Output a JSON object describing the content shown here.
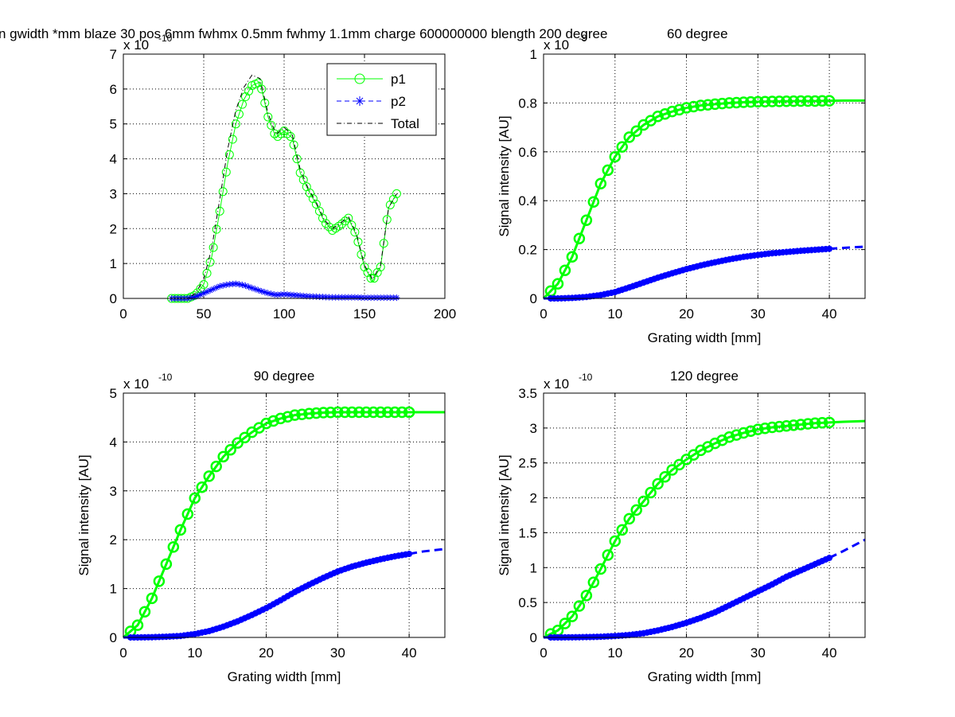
{
  "figure_title_main": "n gwidth *mm blaze 30 pos 6mm fwhmx 0.5mm fwhmy 1.1mm charge 600000000 blength 200 degree",
  "figure_title_overlay": "60 degree",
  "colors": {
    "p1": "#00ff00",
    "p2": "#0000ff",
    "total": "#000000",
    "grid": "#000000"
  },
  "chart_data": [
    {
      "type": "line",
      "title": "",
      "xlabel": "",
      "ylabel": "",
      "xlim": [
        0,
        200
      ],
      "ylim": [
        0,
        7
      ],
      "xticks": [
        0,
        50,
        100,
        150,
        200
      ],
      "yticks": [
        0,
        1,
        2,
        3,
        4,
        5,
        6,
        7
      ],
      "exponent": "x 10",
      "exponent_power": "-10",
      "grid": true,
      "legend": {
        "placement": "top-right",
        "entries": [
          "p1",
          "p2",
          "Total"
        ]
      },
      "series": [
        {
          "name": "p1",
          "marker": "o",
          "x": [
            30,
            40,
            45,
            50,
            55,
            60,
            65,
            70,
            75,
            80,
            85,
            90,
            95,
            100,
            105,
            110,
            115,
            120,
            125,
            130,
            135,
            140,
            145,
            150,
            155,
            160,
            165,
            170
          ],
          "values": [
            0,
            0,
            0.1,
            0.4,
            1.2,
            2.5,
            3.9,
            5.0,
            5.7,
            6.1,
            6.2,
            5.2,
            4.6,
            4.8,
            4.6,
            3.6,
            3.1,
            2.7,
            2.2,
            1.95,
            2.1,
            2.3,
            1.8,
            0.9,
            0.5,
            0.9,
            2.6,
            3.0
          ]
        },
        {
          "name": "p2",
          "marker": "*",
          "x": [
            30,
            40,
            45,
            50,
            55,
            60,
            65,
            70,
            75,
            80,
            85,
            90,
            95,
            100,
            105,
            110,
            115,
            120,
            125,
            130,
            135,
            140,
            145,
            150,
            155,
            160,
            165,
            170
          ],
          "values": [
            0,
            0,
            0.05,
            0.15,
            0.25,
            0.35,
            0.4,
            0.42,
            0.38,
            0.3,
            0.22,
            0.15,
            0.1,
            0.12,
            0.1,
            0.08,
            0.06,
            0.05,
            0.04,
            0.03,
            0.03,
            0.03,
            0.03,
            0.02,
            0.02,
            0.02,
            0.02,
            0.02
          ]
        },
        {
          "name": "Total",
          "marker": "none",
          "x": [
            30,
            40,
            45,
            50,
            55,
            60,
            65,
            70,
            75,
            80,
            85,
            90,
            95,
            100,
            105,
            110,
            115,
            120,
            125,
            130,
            135,
            140,
            145,
            150,
            155,
            160,
            165,
            170
          ],
          "values": [
            0,
            0,
            0.15,
            0.55,
            1.45,
            2.85,
            4.3,
            5.4,
            6.05,
            6.4,
            6.3,
            5.3,
            4.7,
            4.9,
            4.7,
            3.7,
            3.15,
            2.75,
            2.25,
            2.0,
            2.15,
            2.35,
            1.85,
            0.95,
            0.55,
            0.95,
            2.6,
            3.0
          ]
        }
      ]
    },
    {
      "type": "line",
      "title": "",
      "xlabel": "Grating width [mm]",
      "ylabel": "Signal intensity [AU]",
      "xlim": [
        0,
        45
      ],
      "ylim": [
        0,
        1
      ],
      "xticks": [
        0,
        10,
        20,
        30,
        40
      ],
      "yticks": [
        0,
        0.2,
        0.4,
        0.6,
        0.8,
        1
      ],
      "exponent": "x 10",
      "exponent_power": "-9",
      "grid": true,
      "series": [
        {
          "name": "",
          "x": [
            0,
            2,
            4,
            6,
            8,
            10,
            12,
            14,
            16,
            18,
            20,
            22,
            24,
            26,
            28,
            30,
            32,
            34,
            36,
            38,
            40,
            42,
            45
          ],
          "values": [
            0,
            0.06,
            0.17,
            0.32,
            0.47,
            0.58,
            0.66,
            0.71,
            0.745,
            0.765,
            0.78,
            0.79,
            0.795,
            0.8,
            0.803,
            0.805,
            0.806,
            0.807,
            0.808,
            0.808,
            0.809,
            0.81,
            0.81
          ],
          "markers_to": 40
        },
        {
          "name": "",
          "x": [
            0,
            2,
            4,
            6,
            8,
            10,
            12,
            14,
            16,
            18,
            20,
            22,
            24,
            26,
            28,
            30,
            32,
            34,
            36,
            38,
            40,
            42,
            45
          ],
          "values": [
            0,
            0,
            0.002,
            0.006,
            0.014,
            0.026,
            0.045,
            0.065,
            0.085,
            0.103,
            0.12,
            0.135,
            0.148,
            0.16,
            0.17,
            0.178,
            0.185,
            0.19,
            0.195,
            0.199,
            0.203,
            0.207,
            0.212
          ],
          "markers_to": 40
        }
      ]
    },
    {
      "type": "line",
      "title": "90 degree",
      "xlabel": "Grating width [mm]",
      "ylabel": "Signal intensity [AU]",
      "xlim": [
        0,
        45
      ],
      "ylim": [
        0,
        5
      ],
      "xticks": [
        0,
        10,
        20,
        30,
        40
      ],
      "yticks": [
        0,
        1,
        2,
        3,
        4,
        5
      ],
      "exponent": "x 10",
      "exponent_power": "-10",
      "grid": true,
      "series": [
        {
          "name": "",
          "x": [
            0,
            2,
            4,
            6,
            8,
            10,
            12,
            14,
            16,
            18,
            20,
            22,
            24,
            26,
            28,
            30,
            32,
            34,
            36,
            38,
            40,
            42,
            45
          ],
          "values": [
            0,
            0.25,
            0.8,
            1.5,
            2.2,
            2.85,
            3.3,
            3.7,
            3.98,
            4.2,
            4.38,
            4.48,
            4.55,
            4.58,
            4.6,
            4.61,
            4.61,
            4.61,
            4.61,
            4.61,
            4.61,
            4.61,
            4.61
          ],
          "markers_to": 40
        },
        {
          "name": "",
          "x": [
            0,
            2,
            4,
            6,
            8,
            10,
            12,
            14,
            16,
            18,
            20,
            22,
            24,
            26,
            28,
            30,
            32,
            34,
            36,
            38,
            40,
            42,
            45
          ],
          "values": [
            0,
            0,
            0.005,
            0.015,
            0.03,
            0.07,
            0.13,
            0.22,
            0.33,
            0.46,
            0.6,
            0.76,
            0.93,
            1.08,
            1.22,
            1.35,
            1.45,
            1.53,
            1.6,
            1.66,
            1.71,
            1.76,
            1.81
          ],
          "markers_to": 40
        }
      ]
    },
    {
      "type": "line",
      "title": "120 degree",
      "xlabel": "Grating width [mm]",
      "ylabel": "Signal intensity [AU]",
      "xlim": [
        0,
        45
      ],
      "ylim": [
        0,
        3.5
      ],
      "xticks": [
        0,
        10,
        20,
        30,
        40
      ],
      "yticks": [
        0,
        0.5,
        1,
        1.5,
        2,
        2.5,
        3,
        3.5
      ],
      "exponent": "x 10",
      "exponent_power": "-10",
      "grid": true,
      "series": [
        {
          "name": "",
          "x": [
            0,
            2,
            4,
            6,
            8,
            10,
            12,
            14,
            16,
            18,
            20,
            22,
            24,
            26,
            28,
            30,
            32,
            34,
            36,
            38,
            40,
            42,
            45
          ],
          "values": [
            0,
            0.1,
            0.3,
            0.6,
            0.98,
            1.38,
            1.7,
            1.95,
            2.2,
            2.4,
            2.55,
            2.68,
            2.78,
            2.87,
            2.93,
            2.98,
            3.01,
            3.03,
            3.05,
            3.07,
            3.08,
            3.09,
            3.1
          ],
          "markers_to": 40
        },
        {
          "name": "",
          "x": [
            0,
            2,
            4,
            6,
            8,
            10,
            12,
            14,
            16,
            18,
            20,
            22,
            24,
            26,
            28,
            30,
            32,
            34,
            36,
            38,
            40,
            42,
            45
          ],
          "values": [
            0,
            0,
            0.002,
            0.005,
            0.01,
            0.02,
            0.035,
            0.06,
            0.1,
            0.15,
            0.21,
            0.28,
            0.36,
            0.46,
            0.56,
            0.66,
            0.76,
            0.87,
            0.96,
            1.05,
            1.14,
            1.24,
            1.4
          ],
          "markers_to": 40
        }
      ]
    }
  ]
}
